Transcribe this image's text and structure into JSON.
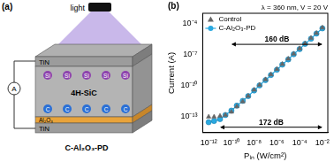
{
  "diagram": {
    "title": "(a)",
    "light": "light",
    "ammeter": "A",
    "layers": [
      "TiN",
      "4H-SiC",
      "Al₂O₃",
      "TiN"
    ],
    "dopant_top": [
      "Si",
      "Si",
      "Si",
      "Si",
      "Si"
    ],
    "dopant_bottom": [
      "C",
      "C",
      "C",
      "C",
      "C"
    ],
    "caption": "C-Al₂O₃-PD"
  },
  "chart_data": {
    "type": "scatter",
    "title": "(b)",
    "log": true,
    "grid": false,
    "legend": "top-left",
    "x_label": "Pᵢₙ (W/cm²)",
    "y_label": "Current (A)",
    "x": [
      1e-12,
      3e-12,
      1e-11,
      3e-11,
      1e-10,
      3e-10,
      1e-09,
      3e-09,
      1e-08,
      3e-08,
      1e-07,
      3e-07,
      1e-06,
      3e-06,
      1e-05,
      3e-05,
      0.0001,
      0.0003,
      0.001,
      0.003,
      0.01
    ],
    "series": [
      {
        "name": "Control",
        "color": "#666666",
        "marker": "triangle",
        "line_style": "none",
        "values": [
          1e-13,
          1e-13,
          1.2e-13,
          1.5e-13,
          3e-13,
          1e-12,
          3e-12,
          1e-11,
          4e-11,
          1.2e-10,
          4e-10,
          1.2e-09,
          4e-09,
          1.2e-08,
          4e-08,
          1.2e-07,
          4e-07,
          1.2e-06,
          4e-06,
          1.2e-05,
          4e-05
        ]
      },
      {
        "name": "C-Al₂O₃-PD",
        "color": "#2aa9e0",
        "marker": "circle",
        "line_style": "solid",
        "values": [
          3e-14,
          4e-14,
          6e-14,
          1.5e-13,
          4e-13,
          1.2e-12,
          3.5e-12,
          1e-11,
          3.5e-11,
          1.1e-10,
          3.5e-10,
          1.1e-09,
          3.5e-09,
          1.1e-08,
          3.5e-08,
          1.1e-07,
          3.5e-07,
          1.1e-06,
          3.5e-06,
          1.1e-05,
          3.5e-05
        ]
      }
    ],
    "xlim": [
      3e-13,
      0.03
    ],
    "xticks": [
      {
        "value": 1e-12,
        "label": "10⁻¹²"
      },
      {
        "value": 1e-10,
        "label": "10⁻¹⁰"
      },
      {
        "value": 1e-08,
        "label": "10⁻⁸"
      },
      {
        "value": 1e-06,
        "label": "10⁻⁶"
      },
      {
        "value": 0.0001,
        "label": "10⁻⁴"
      },
      {
        "value": 0.01,
        "label": "10⁻²"
      }
    ],
    "ylim": [
      3e-15,
      0.001
    ],
    "yticks": [
      {
        "value": 1e-13,
        "label": "10⁻¹³"
      },
      {
        "value": 1e-10,
        "label": "10⁻¹⁰"
      },
      {
        "value": 1e-07,
        "label": "10⁻⁷"
      },
      {
        "value": 0.0001,
        "label": "10⁻⁴"
      }
    ],
    "annotations": [
      {
        "text": "λ = 360 nm, V = 20 V"
      },
      {
        "text": "160 dB",
        "x": [
          1e-10,
          0.01
        ],
        "y": 1e-06
      },
      {
        "text": "172 dB",
        "x": [
          1e-11,
          0.01
        ],
        "y": 1e-14
      }
    ]
  }
}
